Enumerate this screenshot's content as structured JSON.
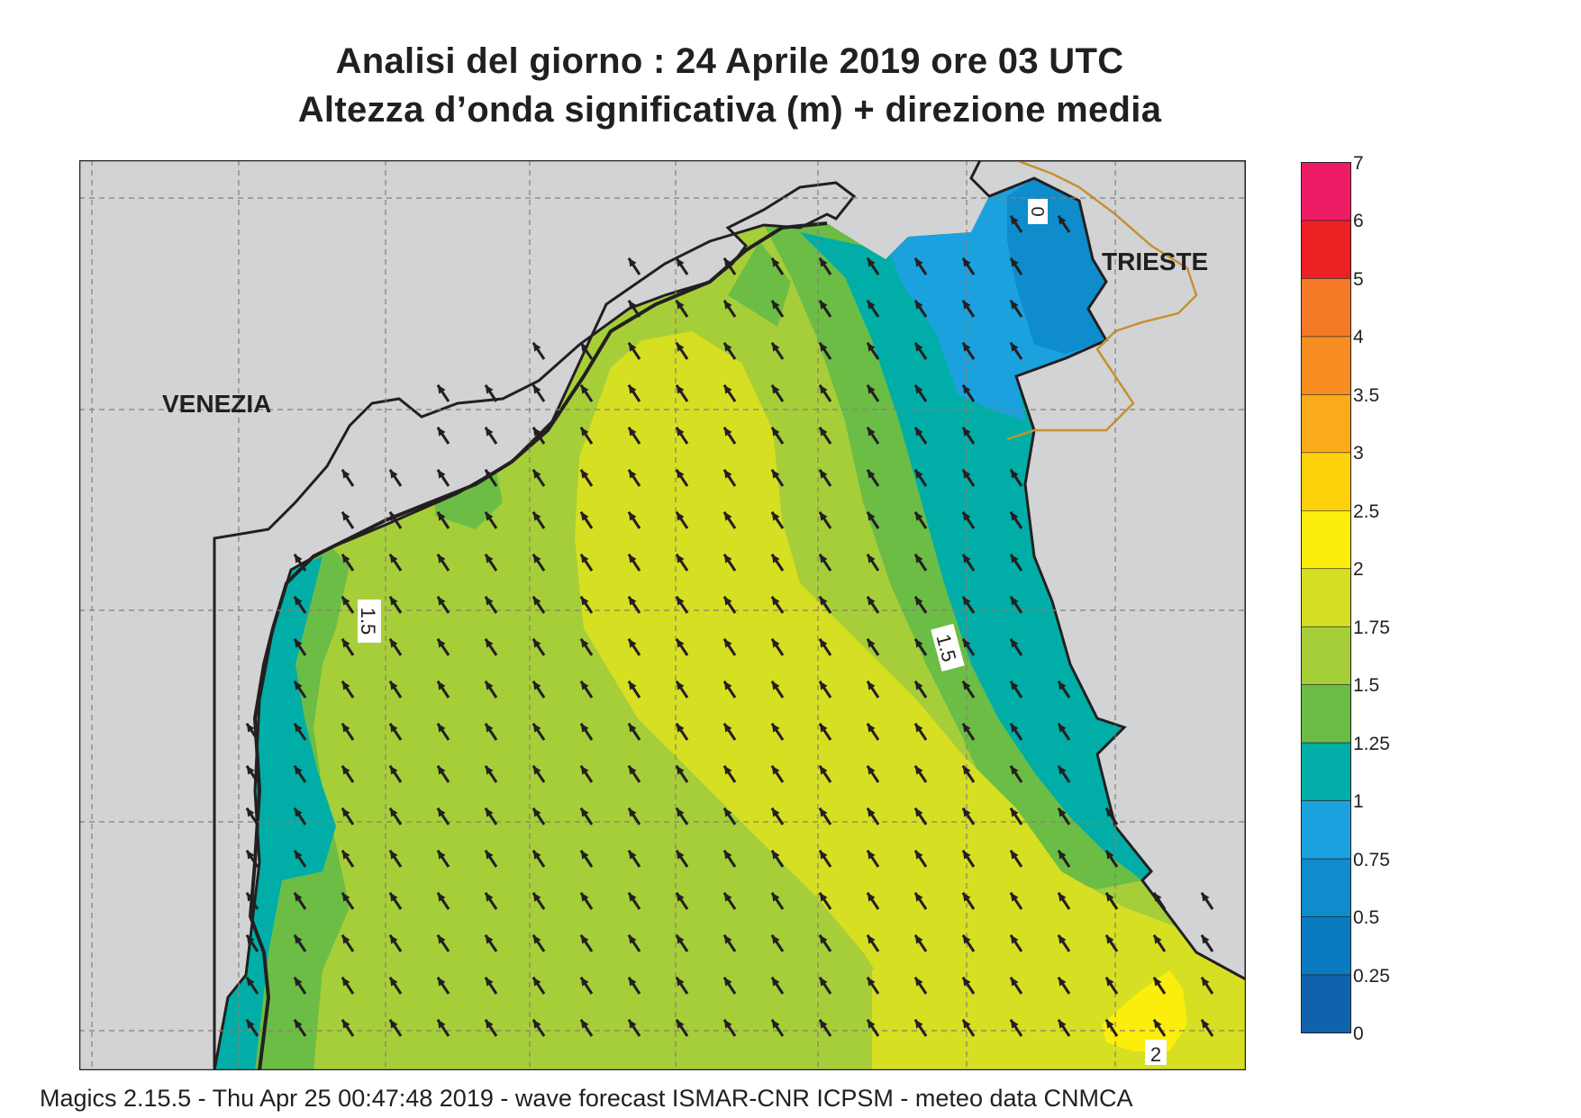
{
  "title": {
    "line1": "Analisi del giorno :  24   Aprile  2019   ore 03 UTC",
    "line2": "Altezza d’onda significativa (m) + direzione media"
  },
  "map": {
    "cities": {
      "venezia": "VENEZIA",
      "trieste": "TRIESTE"
    },
    "contour_labels": {
      "left": "1.5",
      "right": "1.5",
      "bottom": "2",
      "top": "0"
    },
    "land_color": "#d2d3d5",
    "coast_color": "#231f20",
    "border_color": "#c8902f",
    "arrow_direction": "north-west"
  },
  "legend": {
    "levels": [
      "7",
      "6",
      "5",
      "4",
      "3.5",
      "3",
      "2.5",
      "2",
      "1.75",
      "1.5",
      "1.25",
      "1",
      "0.75",
      "0.5",
      "0.25",
      "0"
    ],
    "colors": [
      "#ee1c67",
      "#ed2024",
      "#f47a27",
      "#f68c22",
      "#fbaa19",
      "#fdd20b",
      "#fcee0c",
      "#d7df23",
      "#a6ce39",
      "#6cbd45",
      "#00aea7",
      "#1ba1de",
      "#0f8ccc",
      "#0a7bc1",
      "#1062ac"
    ]
  },
  "footer": "Magics 2.15.5 - Thu Apr 25 00:47:48 2019 - wave forecast  ISMAR-CNR  ICPSM - meteo data   CNMCA"
}
